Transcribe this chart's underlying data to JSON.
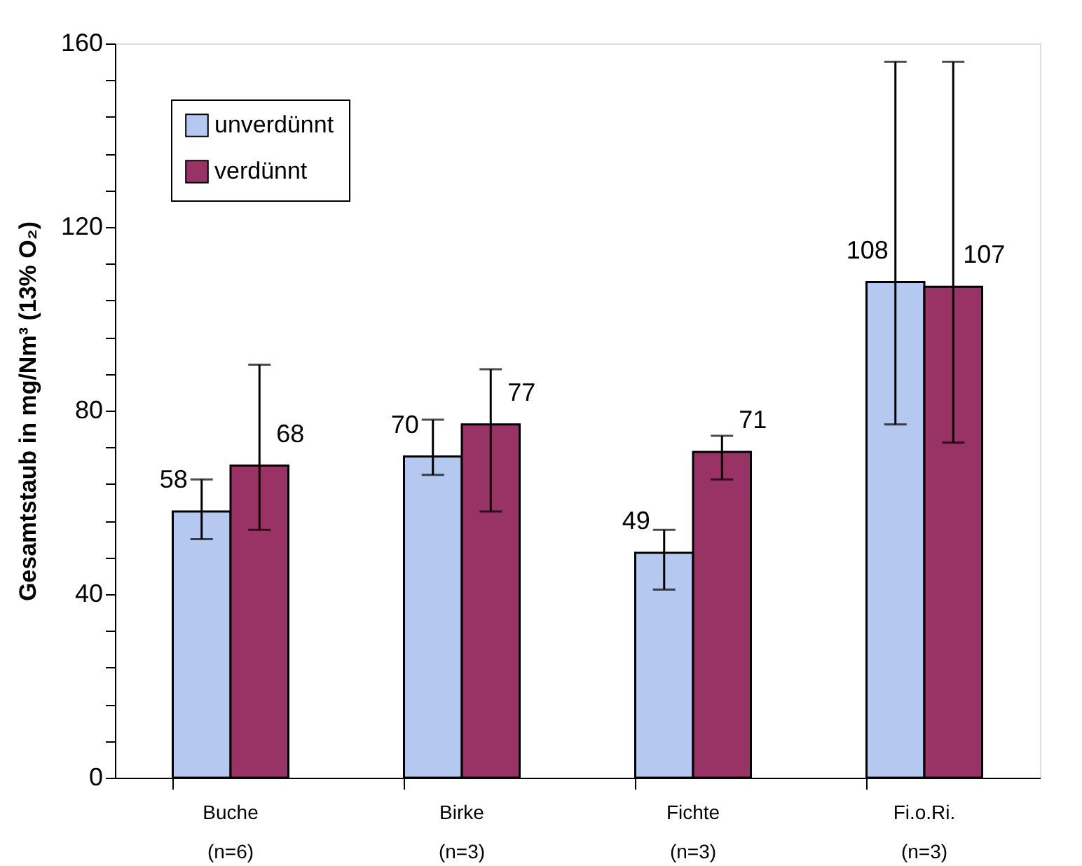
{
  "chart_data": {
    "type": "bar",
    "ylabel": "Gesamtstaub in mg/Nm³ (13% O₂)",
    "categories": [
      "Buche\n(n=6)",
      "Birke\n(n=3)",
      "Fichte\n(n=3)",
      "Fi.o.Ri.\n(n=3)"
    ],
    "series": [
      {
        "name": "unverdünnt",
        "color": "#b4c8f0",
        "values": [
          58,
          70,
          49,
          108
        ],
        "errors": [
          [
            52,
            65
          ],
          [
            66,
            78
          ],
          [
            41,
            54
          ],
          [
            77,
            156
          ]
        ]
      },
      {
        "name": "verdünnt",
        "color": "#993366",
        "values": [
          68,
          77,
          71,
          107
        ],
        "errors": [
          [
            54,
            90
          ],
          [
            58,
            89
          ],
          [
            65,
            74.5
          ],
          [
            73,
            156
          ]
        ]
      }
    ],
    "ylim": [
      0,
      160
    ],
    "yticks": [
      0,
      {
        "value": 8,
        "label": null
      },
      {
        "value": 16,
        "label": null
      },
      {
        "value": 24,
        "label": null
      },
      {
        "value": 32,
        "label": null
      },
      40,
      {
        "value": 48,
        "label": null
      },
      {
        "value": 56,
        "label": null
      },
      {
        "value": 64,
        "label": null
      },
      {
        "value": 72,
        "label": null
      },
      80,
      {
        "value": 88,
        "label": null
      },
      {
        "value": 96,
        "label": null
      },
      {
        "value": 104,
        "label": null
      },
      {
        "value": 112,
        "label": null
      },
      120,
      {
        "value": 128,
        "label": null
      },
      {
        "value": 136,
        "label": null
      },
      {
        "value": 144,
        "label": null
      },
      {
        "value": 152,
        "label": null
      },
      160
    ],
    "data_labels": true,
    "legend": "top left",
    "grid": false
  }
}
